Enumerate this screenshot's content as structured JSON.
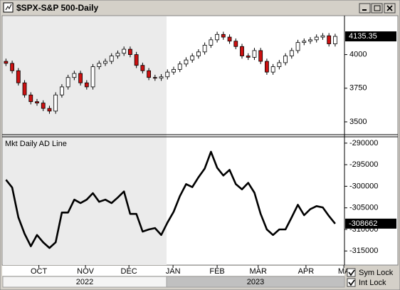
{
  "chart_data": [
    {
      "type": "candlestick",
      "title": "$SPX-S&P 500-Daily",
      "up_color": "#ffffff",
      "down_color": "#cc1111",
      "open": [
        3950,
        3935,
        3880,
        3790,
        3700,
        3650,
        3640,
        3600,
        3580,
        3700,
        3760,
        3830,
        3860,
        3790,
        3760,
        3910,
        3935,
        3950,
        3990,
        4010,
        4040,
        4000,
        3920,
        3880,
        3830,
        3825,
        3835,
        3870,
        3890,
        3930,
        3960,
        3990,
        4020,
        4070,
        4110,
        4150,
        4130,
        4100,
        4060,
        3990,
        3980,
        4030,
        3950,
        3870,
        3910,
        3940,
        3990,
        4030,
        4090,
        4100,
        4110,
        4130,
        4140,
        4080
      ],
      "high": [
        3970,
        3955,
        3900,
        3810,
        3720,
        3670,
        3660,
        3620,
        3720,
        3780,
        3850,
        3880,
        3880,
        3810,
        3930,
        3955,
        3970,
        4010,
        4030,
        4060,
        4060,
        4020,
        3940,
        3900,
        3850,
        3855,
        3890,
        3910,
        3950,
        3980,
        4010,
        4040,
        4090,
        4130,
        4170,
        4170,
        4150,
        4120,
        4080,
        4010,
        4050,
        4050,
        3970,
        3930,
        3960,
        4010,
        4050,
        4110,
        4120,
        4130,
        4150,
        4160,
        4160,
        4155
      ],
      "low": [
        3915,
        3860,
        3770,
        3680,
        3630,
        3620,
        3580,
        3560,
        3560,
        3680,
        3740,
        3810,
        3770,
        3740,
        3740,
        3890,
        3915,
        3930,
        3970,
        3990,
        3980,
        3900,
        3860,
        3810,
        3805,
        3805,
        3815,
        3850,
        3870,
        3910,
        3940,
        3970,
        4000,
        4050,
        4090,
        4110,
        4080,
        4040,
        3970,
        3960,
        3960,
        3930,
        3850,
        3850,
        3890,
        3920,
        3970,
        4010,
        4070,
        4080,
        4090,
        4110,
        4060,
        4060
      ],
      "close": [
        3935,
        3880,
        3790,
        3700,
        3650,
        3640,
        3600,
        3580,
        3700,
        3760,
        3830,
        3860,
        3790,
        3760,
        3910,
        3935,
        3950,
        3990,
        4010,
        4040,
        4000,
        3920,
        3880,
        3830,
        3825,
        3835,
        3870,
        3890,
        3930,
        3960,
        3990,
        4020,
        4070,
        4110,
        4150,
        4130,
        4100,
        4060,
        3990,
        3980,
        4030,
        3950,
        3870,
        3910,
        3940,
        3990,
        4030,
        4090,
        4100,
        4110,
        4130,
        4140,
        4080,
        4135.35
      ],
      "xlim": [
        -0.5,
        54.5
      ],
      "ylim": [
        3410,
        4284
      ],
      "yticks": [
        3500,
        3750,
        4000
      ]
    },
    {
      "type": "line",
      "title": "Mkt Daily AD Line",
      "color": "#000000",
      "values": [
        -298500,
        -300300,
        -307200,
        -311000,
        -313900,
        -311300,
        -313000,
        -314300,
        -313000,
        -306100,
        -306100,
        -303100,
        -303900,
        -303100,
        -301600,
        -303600,
        -303100,
        -303900,
        -302600,
        -301200,
        -306400,
        -306400,
        -310500,
        -310000,
        -309700,
        -311300,
        -308400,
        -305900,
        -302300,
        -299500,
        -300200,
        -297900,
        -295900,
        -292000,
        -295700,
        -297500,
        -296200,
        -299500,
        -300700,
        -299200,
        -301500,
        -306400,
        -310000,
        -311300,
        -310000,
        -310000,
        -307200,
        -304300,
        -306700,
        -305300,
        -304600,
        -304900,
        -306900,
        -308662
      ],
      "xlim": [
        -0.5,
        54.5
      ],
      "ylim": [
        -318100,
        -288700
      ],
      "yticks": [
        -290000,
        -295000,
        -300000,
        -305000,
        -310000,
        -315000
      ],
      "xticks": [
        {
          "value": 5.3,
          "label": "OCT"
        },
        {
          "value": 12.8,
          "label": "NOV"
        },
        {
          "value": 19.8,
          "label": "DEC"
        },
        {
          "value": 26.9,
          "label": "JAN"
        },
        {
          "value": 34,
          "label": "FEB"
        },
        {
          "value": 40.6,
          "label": "MAR"
        },
        {
          "value": 48.3,
          "label": "APR"
        },
        {
          "value": 54.4,
          "label": "MA"
        }
      ],
      "years": [
        "2022",
        "2023"
      ]
    }
  ],
  "controls": [
    {
      "label": "Sym Lock",
      "checked": true
    },
    {
      "label": "Int Lock",
      "checked": true
    }
  ]
}
